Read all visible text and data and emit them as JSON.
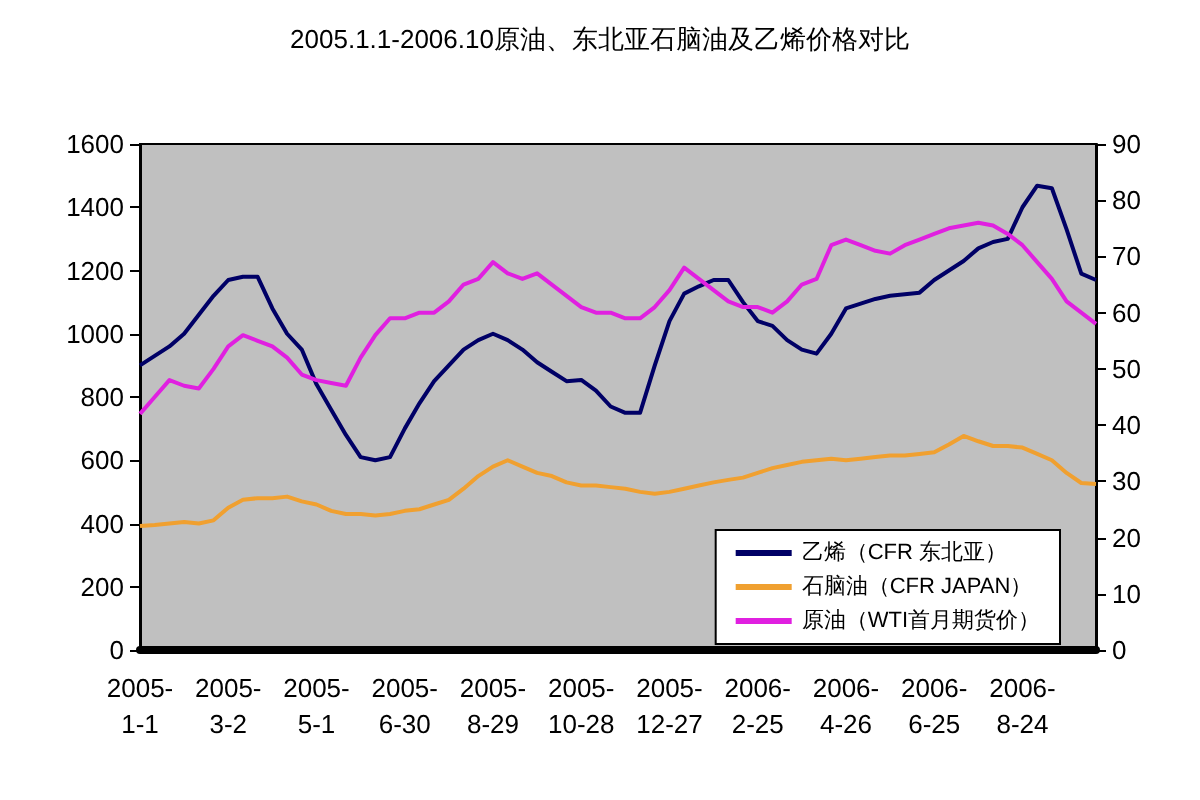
{
  "chart_data": {
    "type": "line",
    "title": "2005.1.1-2006.10原油、东北亚石脑油及乙烯价格对比",
    "categories": [
      "2005-1-1",
      null,
      null,
      null,
      null,
      null,
      "2005-3-2",
      null,
      null,
      null,
      null,
      null,
      "2005-5-1",
      null,
      null,
      null,
      null,
      null,
      "2005-6-30",
      null,
      null,
      null,
      null,
      null,
      "2005-8-29",
      null,
      null,
      null,
      null,
      null,
      "2005-10-28",
      null,
      null,
      null,
      null,
      null,
      "2005-12-27",
      null,
      null,
      null,
      null,
      null,
      "2006-2-25",
      null,
      null,
      null,
      null,
      null,
      "2006-4-26",
      null,
      null,
      null,
      null,
      null,
      "2006-6-25",
      null,
      null,
      null,
      null,
      null,
      "2006-8-24",
      null,
      null,
      null,
      null,
      null
    ],
    "series": [
      {
        "name": "乙烯（CFR 东北亚）",
        "color": "#000066",
        "values": [
          900,
          930,
          960,
          1000,
          1060,
          1120,
          1170,
          1180,
          1180,
          1080,
          1000,
          950,
          840,
          760,
          680,
          610,
          600,
          610,
          700,
          780,
          850,
          900,
          950,
          980,
          1000,
          980,
          950,
          910,
          880,
          850,
          854,
          820,
          770,
          750,
          750,
          900,
          1040,
          1127,
          1150,
          1170,
          1170,
          1100,
          1040,
          1025,
          980,
          950,
          937,
          1000,
          1080,
          1095,
          1110,
          1120,
          1125,
          1130,
          1170,
          1200,
          1230,
          1270,
          1290,
          1300,
          1400,
          1468,
          1460,
          1330,
          1190,
          1170
        ]
      },
      {
        "name": "石脑油（CFR JAPAN）",
        "color": "#f0a030",
        "values": [
          392,
          395,
          400,
          405,
          400,
          410,
          450,
          475,
          480,
          480,
          485,
          470,
          460,
          440,
          430,
          430,
          425,
          430,
          440,
          445,
          460,
          475,
          510,
          550,
          580,
          600,
          580,
          560,
          550,
          530,
          520,
          520,
          515,
          510,
          500,
          494,
          500,
          510,
          520,
          530,
          538,
          545,
          560,
          575,
          585,
          595,
          600,
          605,
          600,
          605,
          610,
          615,
          615,
          620,
          625,
          650,
          677,
          660,
          645,
          645,
          640,
          620,
          600,
          560,
          528,
          525
        ]
      },
      {
        "name": "原油（WTI首月期货价）",
        "color": "#e020e0",
        "axis": "y2",
        "values": [
          42,
          45,
          48,
          47,
          46.5,
          50,
          54,
          56,
          55,
          54,
          52,
          49,
          48,
          47.5,
          47,
          52,
          56,
          59,
          59,
          60,
          60,
          62,
          65,
          66,
          69,
          67,
          66,
          67,
          65,
          63,
          61,
          60,
          60,
          59,
          59,
          61,
          64,
          68,
          66,
          64,
          62,
          61,
          61,
          60,
          62,
          65,
          66,
          72,
          73,
          72,
          71,
          70.5,
          72,
          73,
          74,
          75,
          75.5,
          76,
          75.5,
          74,
          72,
          69,
          66,
          62,
          60,
          58
        ]
      }
    ],
    "ylim": [
      0,
      1600
    ],
    "yticks": [
      0,
      200,
      400,
      600,
      800,
      1000,
      1200,
      1400,
      1600
    ],
    "y2lim": [
      0,
      90
    ],
    "y2ticks": [
      0,
      10,
      20,
      30,
      40,
      50,
      60,
      70,
      80,
      90
    ],
    "legend": "bottom right",
    "grid": false,
    "marker": "none",
    "line_style": "solid"
  }
}
